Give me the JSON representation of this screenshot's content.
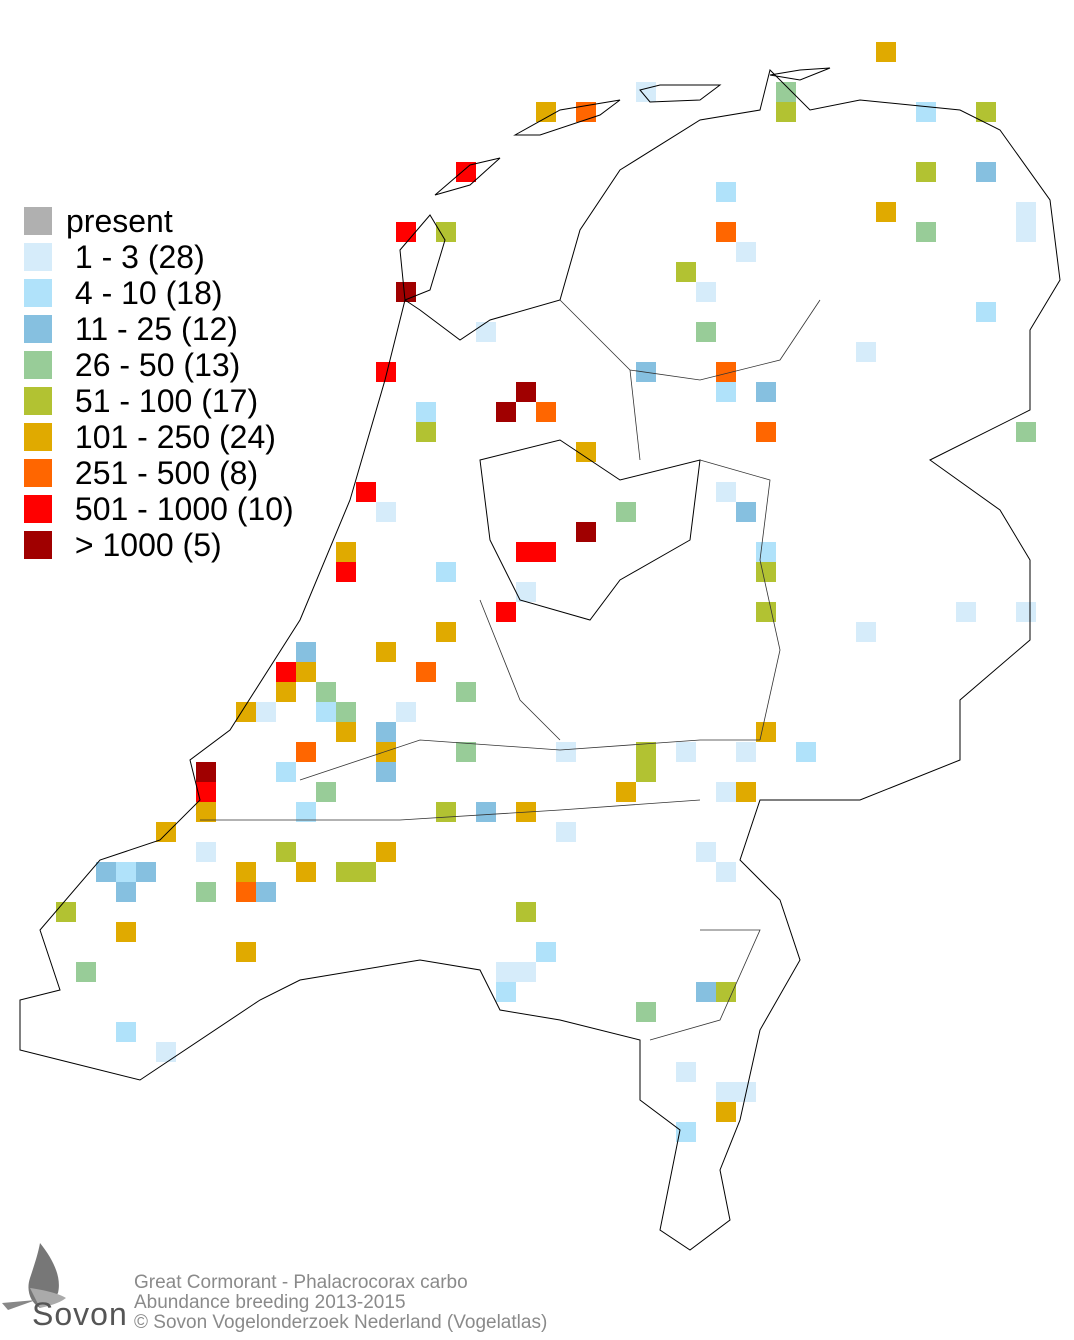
{
  "legend": {
    "items": [
      {
        "label": "present",
        "color": "#b0b0b0"
      },
      {
        "label": " 1 - 3 (28)",
        "color": "#d6ecfa"
      },
      {
        "label": " 4 - 10 (18)",
        "color": "#b0e2fa"
      },
      {
        "label": " 11 - 25 (12)",
        "color": "#86c0e0"
      },
      {
        "label": " 26 - 50 (13)",
        "color": "#98cc98"
      },
      {
        "label": " 51 - 100 (17)",
        "color": "#b2c232"
      },
      {
        "label": " 101 - 250 (24)",
        "color": "#e0aa00"
      },
      {
        "label": " 251 - 500 (8)",
        "color": "#ff6600"
      },
      {
        "label": " 501 - 1000 (10)",
        "color": "#ff0000"
      },
      {
        "label": " > 1000 (5)",
        "color": "#a00000"
      }
    ]
  },
  "footer": {
    "species": "Great Cormorant - Phalacrocorax carbo",
    "subtitle": "Abundance breeding 2013-2015",
    "copyright": "© Sovon Vogelonderzoek Nederland (Vogelatlas)"
  },
  "logo": {
    "text": "Sovon"
  }
}
